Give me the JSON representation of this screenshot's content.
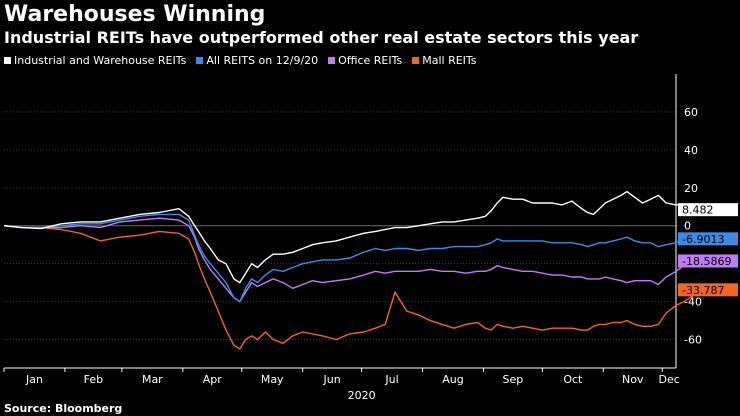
{
  "title": "Warehouses Winning",
  "subtitle": "Industrial REITs have outperformed other real estate sectors this year",
  "source": "Source: Bloomberg",
  "chart_data": {
    "type": "line",
    "title": "Warehouses Winning",
    "subtitle": "Industrial REITs have outperformed other real estate sectors this year",
    "xlabel": "2020",
    "ylabel": "",
    "months": [
      "Jan",
      "Feb",
      "Mar",
      "Apr",
      "May",
      "Jun",
      "Jul",
      "Aug",
      "Sep",
      "Oct",
      "Nov",
      "Dec"
    ],
    "xlim": [
      1,
      343
    ],
    "ylim": [
      -75,
      80
    ],
    "yticks": [
      -60,
      -40,
      -20,
      0,
      20,
      40,
      60
    ],
    "grid": true,
    "legend_position": "top-left",
    "series": [
      {
        "name": "Industrial and Warehouse REITs",
        "color": "#ffffff",
        "end_label": "8.482",
        "points": [
          [
            1,
            0
          ],
          [
            10,
            -1
          ],
          [
            20,
            -1.5
          ],
          [
            30,
            1
          ],
          [
            40,
            2
          ],
          [
            50,
            2
          ],
          [
            60,
            4
          ],
          [
            70,
            6
          ],
          [
            80,
            7
          ],
          [
            90,
            9
          ],
          [
            95,
            5
          ],
          [
            98,
            0
          ],
          [
            100,
            -3
          ],
          [
            103,
            -8
          ],
          [
            106,
            -12
          ],
          [
            110,
            -18
          ],
          [
            114,
            -20
          ],
          [
            118,
            -28
          ],
          [
            121,
            -30
          ],
          [
            124,
            -25
          ],
          [
            127,
            -20
          ],
          [
            130,
            -22
          ],
          [
            134,
            -18
          ],
          [
            138,
            -15
          ],
          [
            143,
            -15
          ],
          [
            148,
            -14
          ],
          [
            153,
            -12
          ],
          [
            158,
            -10
          ],
          [
            163,
            -9
          ],
          [
            170,
            -8
          ],
          [
            177,
            -6
          ],
          [
            184,
            -4
          ],
          [
            190,
            -3
          ],
          [
            195,
            -2
          ],
          [
            200,
            -1
          ],
          [
            206,
            -1
          ],
          [
            212,
            0
          ],
          [
            218,
            1
          ],
          [
            224,
            2
          ],
          [
            230,
            2
          ],
          [
            236,
            3
          ],
          [
            242,
            4
          ],
          [
            246,
            5
          ],
          [
            249,
            8
          ],
          [
            252,
            12
          ],
          [
            255,
            15
          ],
          [
            260,
            14
          ],
          [
            265,
            14
          ],
          [
            270,
            12
          ],
          [
            275,
            12
          ],
          [
            280,
            12
          ],
          [
            285,
            11
          ],
          [
            290,
            13
          ],
          [
            295,
            9
          ],
          [
            298,
            7
          ],
          [
            301,
            6
          ],
          [
            304,
            9
          ],
          [
            307,
            12
          ],
          [
            311,
            14
          ],
          [
            315,
            16
          ],
          [
            318,
            18
          ],
          [
            322,
            15
          ],
          [
            326,
            12
          ],
          [
            330,
            14
          ],
          [
            334,
            16
          ],
          [
            338,
            12
          ],
          [
            343,
            11
          ],
          [
            347,
            11
          ],
          [
            350,
            10
          ],
          [
            355,
            10
          ],
          [
            360,
            9
          ]
        ]
      },
      {
        "name": "All REITS on 12/9/20",
        "color": "#3d8be6",
        "end_label": "-6.9013",
        "points": [
          [
            1,
            0
          ],
          [
            10,
            -1
          ],
          [
            20,
            -1
          ],
          [
            30,
            0
          ],
          [
            40,
            1
          ],
          [
            50,
            1
          ],
          [
            60,
            3
          ],
          [
            70,
            5
          ],
          [
            80,
            6
          ],
          [
            90,
            6
          ],
          [
            95,
            3
          ],
          [
            98,
            -5
          ],
          [
            100,
            -10
          ],
          [
            103,
            -16
          ],
          [
            106,
            -20
          ],
          [
            110,
            -25
          ],
          [
            114,
            -30
          ],
          [
            118,
            -38
          ],
          [
            121,
            -40
          ],
          [
            124,
            -33
          ],
          [
            127,
            -28
          ],
          [
            130,
            -30
          ],
          [
            134,
            -26
          ],
          [
            138,
            -23
          ],
          [
            143,
            -24
          ],
          [
            148,
            -22
          ],
          [
            153,
            -20
          ],
          [
            158,
            -19
          ],
          [
            163,
            -18
          ],
          [
            170,
            -18
          ],
          [
            177,
            -17
          ],
          [
            184,
            -14
          ],
          [
            190,
            -12
          ],
          [
            195,
            -13
          ],
          [
            200,
            -12
          ],
          [
            206,
            -12
          ],
          [
            212,
            -13
          ],
          [
            218,
            -12
          ],
          [
            224,
            -12
          ],
          [
            230,
            -11
          ],
          [
            236,
            -11
          ],
          [
            242,
            -11
          ],
          [
            246,
            -10
          ],
          [
            249,
            -9
          ],
          [
            252,
            -7
          ],
          [
            255,
            -8
          ],
          [
            260,
            -8
          ],
          [
            265,
            -8
          ],
          [
            270,
            -8
          ],
          [
            275,
            -8
          ],
          [
            280,
            -9
          ],
          [
            285,
            -9
          ],
          [
            290,
            -9
          ],
          [
            295,
            -10
          ],
          [
            298,
            -11
          ],
          [
            301,
            -10
          ],
          [
            304,
            -9
          ],
          [
            307,
            -9
          ],
          [
            311,
            -8
          ],
          [
            315,
            -7
          ],
          [
            318,
            -6
          ],
          [
            322,
            -8
          ],
          [
            326,
            -9
          ],
          [
            330,
            -9
          ],
          [
            334,
            -11
          ],
          [
            338,
            -10
          ],
          [
            343,
            -9
          ],
          [
            347,
            -7
          ],
          [
            350,
            -6
          ],
          [
            355,
            -6
          ],
          [
            360,
            -7
          ]
        ]
      },
      {
        "name": "Office REITs",
        "color": "#c17bf5",
        "end_label": "-18.5869",
        "points": [
          [
            1,
            0
          ],
          [
            10,
            -1
          ],
          [
            20,
            -1
          ],
          [
            30,
            -1
          ],
          [
            40,
            0
          ],
          [
            50,
            -1
          ],
          [
            60,
            2
          ],
          [
            70,
            3
          ],
          [
            80,
            4
          ],
          [
            90,
            3
          ],
          [
            95,
            0
          ],
          [
            98,
            -6
          ],
          [
            100,
            -12
          ],
          [
            103,
            -18
          ],
          [
            106,
            -23
          ],
          [
            110,
            -28
          ],
          [
            114,
            -33
          ],
          [
            118,
            -38
          ],
          [
            121,
            -40
          ],
          [
            124,
            -35
          ],
          [
            127,
            -30
          ],
          [
            130,
            -32
          ],
          [
            134,
            -30
          ],
          [
            138,
            -28
          ],
          [
            143,
            -30
          ],
          [
            148,
            -33
          ],
          [
            153,
            -31
          ],
          [
            158,
            -29
          ],
          [
            163,
            -30
          ],
          [
            170,
            -29
          ],
          [
            177,
            -28
          ],
          [
            184,
            -26
          ],
          [
            190,
            -24
          ],
          [
            195,
            -25
          ],
          [
            200,
            -24
          ],
          [
            206,
            -24
          ],
          [
            212,
            -24
          ],
          [
            218,
            -23
          ],
          [
            224,
            -24
          ],
          [
            230,
            -24
          ],
          [
            236,
            -25
          ],
          [
            242,
            -24
          ],
          [
            246,
            -24
          ],
          [
            249,
            -23
          ],
          [
            252,
            -21
          ],
          [
            255,
            -22
          ],
          [
            260,
            -23
          ],
          [
            265,
            -24
          ],
          [
            270,
            -24
          ],
          [
            275,
            -25
          ],
          [
            280,
            -26
          ],
          [
            285,
            -26
          ],
          [
            290,
            -27
          ],
          [
            295,
            -27
          ],
          [
            298,
            -28
          ],
          [
            301,
            -28
          ],
          [
            304,
            -28
          ],
          [
            307,
            -27
          ],
          [
            311,
            -28
          ],
          [
            315,
            -29
          ],
          [
            318,
            -30
          ],
          [
            322,
            -29
          ],
          [
            326,
            -29
          ],
          [
            330,
            -29
          ],
          [
            334,
            -31
          ],
          [
            338,
            -27
          ],
          [
            343,
            -24
          ],
          [
            347,
            -21
          ],
          [
            350,
            -19
          ],
          [
            355,
            -19
          ],
          [
            360,
            -19
          ]
        ]
      },
      {
        "name": "Mall REITs",
        "color": "#f26522",
        "end_label": "-33.787",
        "points": [
          [
            1,
            0
          ],
          [
            10,
            -1
          ],
          [
            20,
            -1
          ],
          [
            30,
            -2
          ],
          [
            40,
            -4
          ],
          [
            50,
            -8
          ],
          [
            60,
            -6
          ],
          [
            70,
            -5
          ],
          [
            80,
            -3
          ],
          [
            90,
            -4
          ],
          [
            95,
            -7
          ],
          [
            98,
            -14
          ],
          [
            100,
            -20
          ],
          [
            103,
            -28
          ],
          [
            106,
            -35
          ],
          [
            110,
            -45
          ],
          [
            114,
            -55
          ],
          [
            118,
            -63
          ],
          [
            121,
            -65
          ],
          [
            124,
            -60
          ],
          [
            127,
            -58
          ],
          [
            130,
            -60
          ],
          [
            134,
            -56
          ],
          [
            138,
            -60
          ],
          [
            143,
            -62
          ],
          [
            148,
            -58
          ],
          [
            153,
            -56
          ],
          [
            158,
            -57
          ],
          [
            163,
            -58
          ],
          [
            170,
            -60
          ],
          [
            177,
            -57
          ],
          [
            184,
            -56
          ],
          [
            190,
            -54
          ],
          [
            195,
            -52
          ],
          [
            200,
            -35
          ],
          [
            203,
            -40
          ],
          [
            206,
            -45
          ],
          [
            212,
            -47
          ],
          [
            218,
            -50
          ],
          [
            224,
            -52
          ],
          [
            230,
            -54
          ],
          [
            236,
            -52
          ],
          [
            242,
            -51
          ],
          [
            246,
            -54
          ],
          [
            249,
            -55
          ],
          [
            252,
            -52
          ],
          [
            255,
            -53
          ],
          [
            260,
            -54
          ],
          [
            265,
            -53
          ],
          [
            270,
            -54
          ],
          [
            275,
            -55
          ],
          [
            280,
            -54
          ],
          [
            285,
            -54
          ],
          [
            290,
            -54
          ],
          [
            295,
            -55
          ],
          [
            298,
            -55
          ],
          [
            301,
            -53
          ],
          [
            304,
            -52
          ],
          [
            307,
            -52
          ],
          [
            311,
            -51
          ],
          [
            315,
            -51
          ],
          [
            318,
            -50
          ],
          [
            322,
            -52
          ],
          [
            326,
            -53
          ],
          [
            330,
            -53
          ],
          [
            334,
            -52
          ],
          [
            338,
            -46
          ],
          [
            343,
            -42
          ],
          [
            347,
            -40
          ],
          [
            350,
            -38
          ],
          [
            355,
            -35
          ],
          [
            360,
            -34
          ]
        ]
      }
    ]
  },
  "colors": {
    "background": "#000000",
    "text": "#ffffff",
    "grid": "#3a3a3a",
    "end_label_text_light": "#000000",
    "end_label_text_dark": "#ffffff"
  }
}
